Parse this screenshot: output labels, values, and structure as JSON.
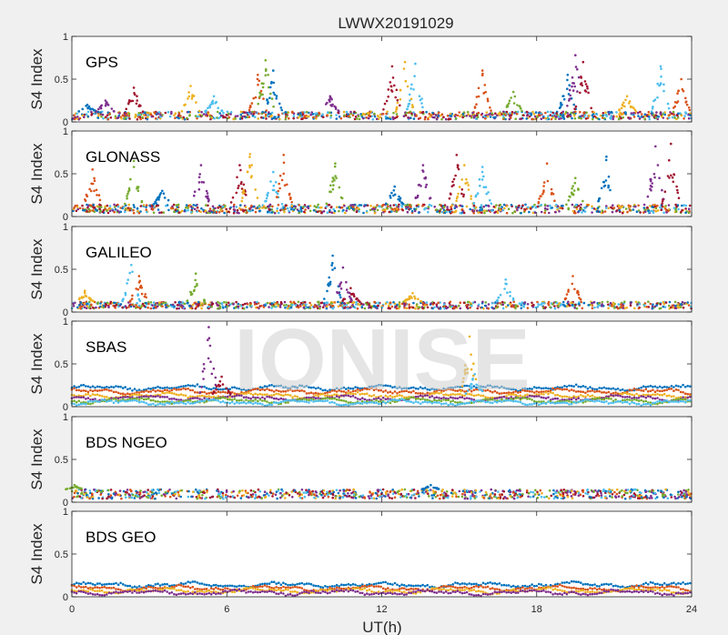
{
  "title": "LWWX20191029",
  "watermark": "IONISE",
  "xlabel": "UT(h)",
  "colors": [
    "#0072BD",
    "#D95319",
    "#EDB120",
    "#7E2F8E",
    "#77AC30",
    "#4DBEEE",
    "#A2142F"
  ],
  "chart_data": {
    "type": "scatter",
    "title": "LWWX20191029",
    "xlabel": "UT(h)",
    "xlim": [
      0,
      24
    ],
    "xticks": [
      0,
      6,
      12,
      18,
      24
    ],
    "grid": false,
    "panels": [
      {
        "name": "GPS",
        "ylabel": "S4 Index",
        "ylim": [
          0,
          1
        ],
        "yticks": [
          0,
          0.5,
          1
        ],
        "baseline_min": 0.03,
        "baseline_max": 0.12,
        "spikes": [
          {
            "x": 0.6,
            "peak": 0.2
          },
          {
            "x": 1.3,
            "peak": 0.25
          },
          {
            "x": 2.4,
            "peak": 0.4
          },
          {
            "x": 4.6,
            "peak": 0.42
          },
          {
            "x": 5.5,
            "peak": 0.3
          },
          {
            "x": 7.2,
            "peak": 0.55
          },
          {
            "x": 7.5,
            "peak": 0.72
          },
          {
            "x": 7.8,
            "peak": 0.6
          },
          {
            "x": 10.0,
            "peak": 0.3
          },
          {
            "x": 12.4,
            "peak": 0.65
          },
          {
            "x": 12.9,
            "peak": 0.7
          },
          {
            "x": 13.3,
            "peak": 0.68
          },
          {
            "x": 15.9,
            "peak": 0.6
          },
          {
            "x": 17.1,
            "peak": 0.35
          },
          {
            "x": 19.2,
            "peak": 0.55
          },
          {
            "x": 19.5,
            "peak": 0.78
          },
          {
            "x": 19.8,
            "peak": 0.7
          },
          {
            "x": 21.5,
            "peak": 0.3
          },
          {
            "x": 22.8,
            "peak": 0.65
          },
          {
            "x": 23.6,
            "peak": 0.5
          }
        ]
      },
      {
        "name": "GLONASS",
        "ylabel": "S4 Index",
        "ylim": [
          0,
          1
        ],
        "yticks": [
          0,
          0.5,
          1
        ],
        "baseline_min": 0.04,
        "baseline_max": 0.14,
        "spikes": [
          {
            "x": 0.8,
            "peak": 0.55
          },
          {
            "x": 2.4,
            "peak": 0.65
          },
          {
            "x": 3.5,
            "peak": 0.3
          },
          {
            "x": 5.0,
            "peak": 0.6
          },
          {
            "x": 6.5,
            "peak": 0.6
          },
          {
            "x": 6.9,
            "peak": 0.73
          },
          {
            "x": 7.8,
            "peak": 0.52
          },
          {
            "x": 8.2,
            "peak": 0.72
          },
          {
            "x": 10.2,
            "peak": 0.62
          },
          {
            "x": 12.5,
            "peak": 0.35
          },
          {
            "x": 13.6,
            "peak": 0.6
          },
          {
            "x": 14.9,
            "peak": 0.72
          },
          {
            "x": 15.2,
            "peak": 0.6
          },
          {
            "x": 15.9,
            "peak": 0.58
          },
          {
            "x": 18.4,
            "peak": 0.62
          },
          {
            "x": 19.5,
            "peak": 0.45
          },
          {
            "x": 20.7,
            "peak": 0.7
          },
          {
            "x": 22.6,
            "peak": 0.82
          },
          {
            "x": 23.2,
            "peak": 0.85
          }
        ]
      },
      {
        "name": "GALILEO",
        "ylabel": "S4 Index",
        "ylim": [
          0,
          1
        ],
        "yticks": [
          0,
          0.5,
          1
        ],
        "baseline_min": 0.04,
        "baseline_max": 0.12,
        "spikes": [
          {
            "x": 0.5,
            "peak": 0.25
          },
          {
            "x": 2.3,
            "peak": 0.55
          },
          {
            "x": 2.6,
            "peak": 0.42
          },
          {
            "x": 4.8,
            "peak": 0.45
          },
          {
            "x": 10.1,
            "peak": 0.66
          },
          {
            "x": 10.5,
            "peak": 0.52
          },
          {
            "x": 10.8,
            "peak": 0.28
          },
          {
            "x": 13.2,
            "peak": 0.22
          },
          {
            "x": 16.8,
            "peak": 0.38
          },
          {
            "x": 19.4,
            "peak": 0.42
          }
        ]
      },
      {
        "name": "SBAS",
        "ylabel": "S4 Index",
        "ylim": [
          0,
          1
        ],
        "yticks": [
          0,
          0.5,
          1
        ],
        "bands": [
          0.22,
          0.18,
          0.13,
          0.1,
          0.07,
          0.05
        ],
        "spikes": [
          {
            "x": 5.3,
            "peak": 0.93
          },
          {
            "x": 5.8,
            "peak": 0.35
          },
          {
            "x": 15.4,
            "peak": 0.82
          },
          {
            "x": 15.6,
            "peak": 0.38
          }
        ]
      },
      {
        "name": "BDS NGEO",
        "ylabel": "S4 Index",
        "ylim": [
          0,
          1
        ],
        "yticks": [
          0,
          0.5,
          1
        ],
        "baseline_min": 0.04,
        "baseline_max": 0.15,
        "spikes": [
          {
            "x": 0.1,
            "peak": 0.2
          },
          {
            "x": 13.9,
            "peak": 0.2
          }
        ]
      },
      {
        "name": "BDS GEO",
        "ylabel": "S4 Index",
        "ylim": [
          0,
          1
        ],
        "yticks": [
          0,
          0.5,
          1
        ],
        "bands": [
          0.14,
          0.1,
          0.07,
          0.05
        ],
        "spikes": []
      }
    ]
  }
}
